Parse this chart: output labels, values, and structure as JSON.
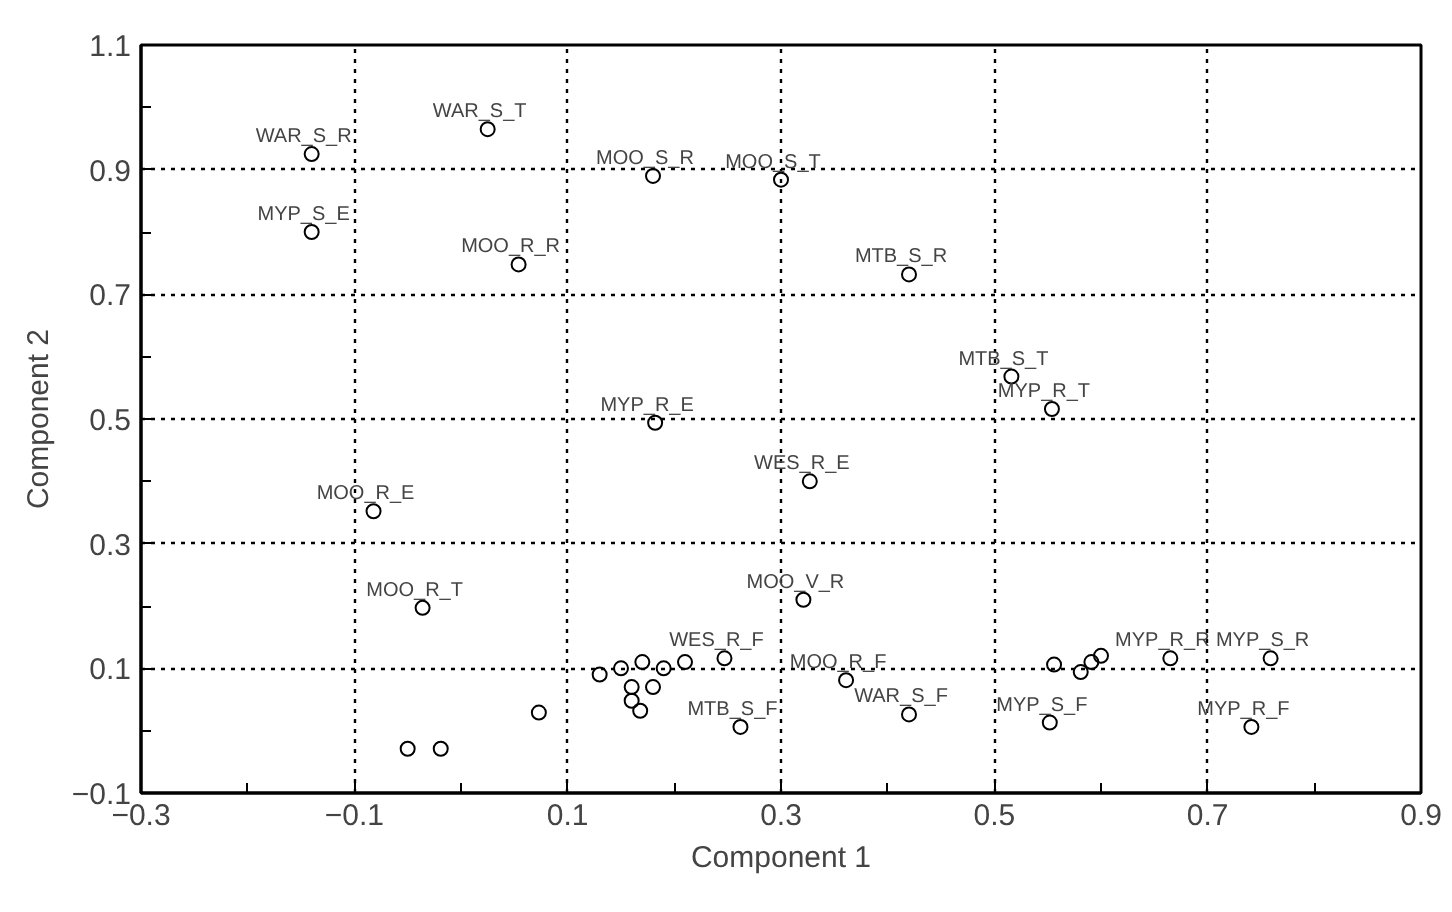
{
  "chart_data": {
    "type": "scatter",
    "xlabel": "Component 1",
    "ylabel": "Component 2",
    "marker": "circle",
    "grid": true,
    "color": "#000000",
    "xlim": [
      -0.3,
      0.9
    ],
    "ylim": [
      -0.1,
      1.1
    ],
    "xticks": [
      {
        "value": -0.3,
        "label": "−0.3"
      },
      {
        "value": -0.2,
        "label": null
      },
      {
        "value": -0.1,
        "label": "−0.1"
      },
      {
        "value": 0,
        "label": null
      },
      0.1,
      {
        "value": 0.2,
        "label": null
      },
      0.3,
      {
        "value": 0.4,
        "label": null
      },
      0.5,
      {
        "value": 0.6,
        "label": null
      },
      0.7,
      {
        "value": 0.8,
        "label": null
      },
      0.9
    ],
    "yticks": [
      {
        "value": -0.1,
        "label": "−0.1"
      },
      {
        "value": 0,
        "label": null
      },
      0.1,
      {
        "value": 0.2,
        "label": null
      },
      0.3,
      {
        "value": 0.4,
        "label": null
      },
      0.5,
      {
        "value": 0.6,
        "label": null
      },
      0.7,
      {
        "value": 0.8,
        "label": null
      },
      0.9,
      {
        "value": 1.0,
        "label": null
      },
      1.1
    ],
    "x": [
      -0.14,
      0.025,
      0.18,
      0.3,
      -0.14,
      0.054,
      0.42,
      0.516,
      0.554,
      0.182,
      0.327,
      -0.082,
      -0.036,
      0.321,
      -0.05,
      -0.019,
      0.247,
      0.073,
      0.262,
      0.13,
      0.15,
      0.17,
      0.19,
      0.21,
      0.16,
      0.18,
      0.16,
      0.168,
      0.361,
      0.42,
      0.552,
      0.741,
      0.759,
      0.665,
      0.556,
      0.581,
      0.591,
      0.6
    ],
    "values": [
      0.925,
      0.965,
      0.89,
      0.884,
      0.8,
      0.748,
      0.732,
      0.568,
      0.516,
      0.494,
      0.4,
      0.352,
      0.197,
      0.21,
      -0.029,
      -0.029,
      0.116,
      0.029,
      0.006,
      0.09,
      0.1,
      0.11,
      0.1,
      0.11,
      0.07,
      0.07,
      0.048,
      0.032,
      0.081,
      0.026,
      0.013,
      0.006,
      0.116,
      0.116,
      0.106,
      0.094,
      0.11,
      0.12
    ],
    "annotations": [
      {
        "text": "WAR_S_R",
        "x": -0.14,
        "y": 0.925
      },
      {
        "text": "WAR_S_T",
        "x": 0.025,
        "y": 0.965
      },
      {
        "text": "MOO_S_R",
        "x": 0.18,
        "y": 0.89
      },
      {
        "text": "MOO_S_T",
        "x": 0.3,
        "y": 0.884
      },
      {
        "text": "MYP_S_E",
        "x": -0.14,
        "y": 0.8
      },
      {
        "text": "MOO_R_R",
        "x": 0.054,
        "y": 0.748
      },
      {
        "text": "MTB_S_R",
        "x": 0.42,
        "y": 0.732
      },
      {
        "text": "MTB_S_T",
        "x": 0.516,
        "y": 0.568
      },
      {
        "text": "MYP_R_T",
        "x": 0.554,
        "y": 0.516
      },
      {
        "text": "MYP_R_E",
        "x": 0.182,
        "y": 0.494
      },
      {
        "text": "WES_R_E",
        "x": 0.327,
        "y": 0.4
      },
      {
        "text": "MOO_R_E",
        "x": -0.082,
        "y": 0.352
      },
      {
        "text": "MOO_R_T",
        "x": -0.036,
        "y": 0.197
      },
      {
        "text": "MOO_V_R",
        "x": 0.321,
        "y": 0.21
      },
      {
        "text": "WES_R_F",
        "x": 0.247,
        "y": 0.116
      },
      {
        "text": "MTB_S_F",
        "x": 0.262,
        "y": 0.006
      },
      {
        "text": "MOO_R_F",
        "x": 0.361,
        "y": 0.081
      },
      {
        "text": "WAR_S_F",
        "x": 0.42,
        "y": 0.026
      },
      {
        "text": "MYP_S_F",
        "x": 0.552,
        "y": 0.013
      },
      {
        "text": "MYP_R_F",
        "x": 0.741,
        "y": 0.006
      },
      {
        "text": "MYP_S_R",
        "x": 0.759,
        "y": 0.116
      },
      {
        "text": "MYP_R_R",
        "x": 0.665,
        "y": 0.116
      }
    ]
  }
}
